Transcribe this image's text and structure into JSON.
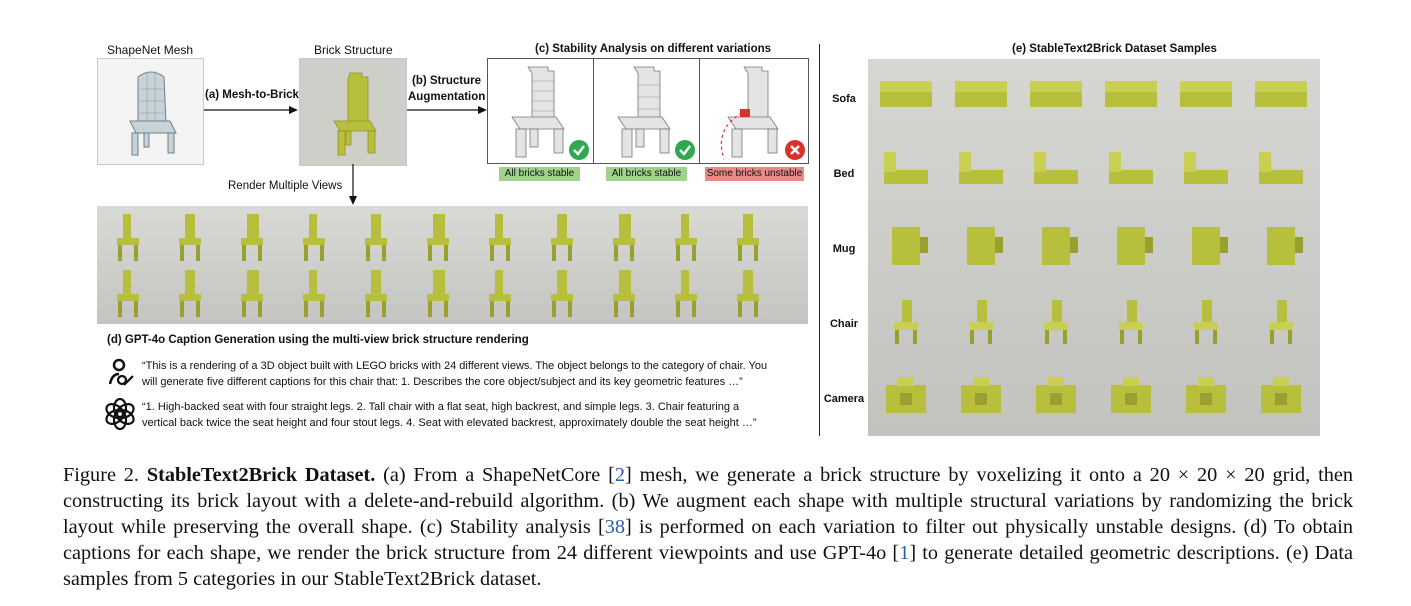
{
  "panel_a": {
    "mesh_title": "ShapeNet Mesh",
    "brick_title": "Brick Structure",
    "arrow_label": "(a) Mesh-to-Brick"
  },
  "panel_b": {
    "label_line1": "(b) Structure",
    "label_line2": "Augmentation"
  },
  "panel_c": {
    "title": "(c) Stability Analysis on different variations",
    "variations": [
      {
        "status": "All bricks stable",
        "result": "stable"
      },
      {
        "status": "All bricks stable",
        "result": "stable"
      },
      {
        "status": "Some bricks unstable",
        "result": "unstable"
      }
    ],
    "colors": {
      "stable": "#2fa84f",
      "unstable": "#d9312b"
    }
  },
  "render_label": "Render Multiple Views",
  "panel_d": {
    "title": "(d) GPT-4o Caption Generation using the multi-view brick structure rendering",
    "prompt_line1": "“This is a rendering of a 3D object built with LEGO bricks with 24 different views. The object belongs to the category of chair. You",
    "prompt_line2": "will generate five different captions for this chair that: 1. Describes the core object/subject and its key geometric features …”",
    "response_line1": "“1. High-backed seat with four straight legs. 2. Tall chair with a flat seat, high backrest, and simple legs. 3. Chair featuring a",
    "response_line2": "vertical back twice the seat height and four stout legs. 4. Seat with elevated backrest, approximately double the seat height …”"
  },
  "panel_e": {
    "title": "(e) StableText2Brick Dataset Samples",
    "categories": [
      "Sofa",
      "Bed",
      "Mug",
      "Chair",
      "Camera"
    ]
  },
  "brick_color": "#b8bf3c",
  "figure_caption": {
    "prefix": "Figure 2. ",
    "title": "StableText2Brick Dataset.",
    "t1": " (a) From a ShapeNetCore [",
    "c1": "2",
    "t2": "] mesh, we generate a brick structure by voxelizing it onto a 20 × 20 × 20 grid, then constructing its brick layout with a delete-and-rebuild algorithm. (b) We augment each shape with multiple structural variations by randomizing the brick layout while preserving the overall shape. (c) Stability analysis [",
    "c2": "38",
    "t3": "] is performed on each variation to filter out physically unstable designs. (d) To obtain captions for each shape, we render the brick structure from 24 different viewpoints and use GPT-4o [",
    "c3": "1",
    "t4": "] to generate detailed geometric descriptions. (e) Data samples from 5 categories in our StableText2Brick dataset."
  }
}
